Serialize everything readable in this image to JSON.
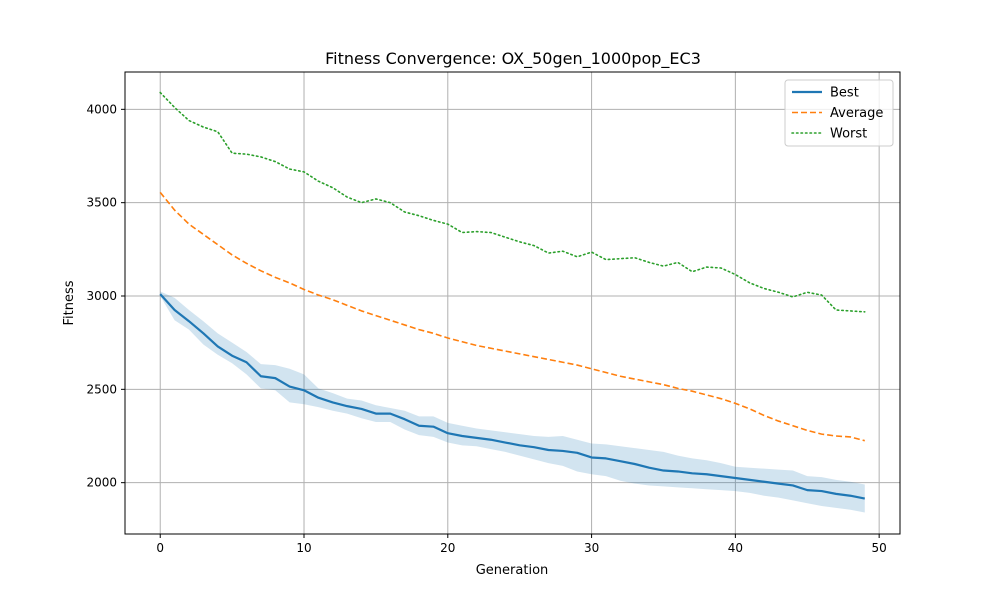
{
  "chart_data": {
    "type": "line",
    "title": "Fitness Convergence: OX_50gen_1000pop_EC3",
    "xlabel": "Generation",
    "ylabel": "Fitness",
    "xlim": [
      -2.45,
      51.45
    ],
    "ylim": [
      1725,
      4200
    ],
    "xticks": [
      0,
      10,
      20,
      30,
      40,
      50
    ],
    "yticks": [
      2000,
      2500,
      3000,
      3500,
      4000
    ],
    "grid": true,
    "legend_position": "top-right",
    "x": [
      0,
      1,
      2,
      3,
      4,
      5,
      6,
      7,
      8,
      9,
      10,
      11,
      12,
      13,
      14,
      15,
      16,
      17,
      18,
      19,
      20,
      21,
      22,
      23,
      24,
      25,
      26,
      27,
      28,
      29,
      30,
      31,
      32,
      33,
      34,
      35,
      36,
      37,
      38,
      39,
      40,
      41,
      42,
      43,
      44,
      45,
      46,
      47,
      48,
      49
    ],
    "series": [
      {
        "name": "Best",
        "color": "#1f77b4",
        "style": "solid",
        "values": [
          3010,
          2925,
          2865,
          2800,
          2730,
          2680,
          2645,
          2570,
          2560,
          2515,
          2495,
          2455,
          2430,
          2410,
          2395,
          2370,
          2370,
          2340,
          2305,
          2300,
          2265,
          2250,
          2240,
          2230,
          2215,
          2200,
          2190,
          2175,
          2170,
          2160,
          2135,
          2130,
          2115,
          2100,
          2080,
          2065,
          2060,
          2050,
          2045,
          2035,
          2025,
          2015,
          2005,
          1995,
          1985,
          1960,
          1955,
          1940,
          1930,
          1915
        ],
        "band_lower": [
          3000,
          2870,
          2820,
          2740,
          2685,
          2640,
          2580,
          2505,
          2495,
          2430,
          2420,
          2405,
          2385,
          2370,
          2345,
          2325,
          2325,
          2285,
          2255,
          2245,
          2215,
          2200,
          2195,
          2180,
          2165,
          2145,
          2125,
          2105,
          2090,
          2060,
          2045,
          2035,
          2010,
          1995,
          1985,
          1980,
          1975,
          1970,
          1965,
          1960,
          1955,
          1945,
          1930,
          1920,
          1905,
          1890,
          1875,
          1865,
          1855,
          1840
        ],
        "band_upper": [
          3025,
          2990,
          2925,
          2865,
          2800,
          2750,
          2700,
          2635,
          2630,
          2610,
          2580,
          2505,
          2480,
          2450,
          2440,
          2415,
          2400,
          2385,
          2355,
          2355,
          2320,
          2305,
          2290,
          2280,
          2270,
          2260,
          2250,
          2245,
          2250,
          2230,
          2210,
          2205,
          2195,
          2185,
          2175,
          2165,
          2145,
          2130,
          2120,
          2105,
          2085,
          2080,
          2075,
          2070,
          2065,
          2035,
          2030,
          2015,
          2005,
          1990
        ]
      },
      {
        "name": "Average",
        "color": "#ff7f0e",
        "style": "dashed",
        "values": [
          3555,
          3460,
          3385,
          3330,
          3275,
          3220,
          3175,
          3135,
          3100,
          3070,
          3035,
          3005,
          2980,
          2950,
          2920,
          2895,
          2870,
          2845,
          2820,
          2800,
          2775,
          2755,
          2735,
          2720,
          2705,
          2690,
          2675,
          2660,
          2645,
          2630,
          2610,
          2590,
          2570,
          2555,
          2540,
          2525,
          2505,
          2490,
          2470,
          2450,
          2425,
          2395,
          2360,
          2330,
          2305,
          2280,
          2260,
          2250,
          2245,
          2225
        ]
      },
      {
        "name": "Worst",
        "color": "#2ca02c",
        "style": "dotted",
        "values": [
          4090,
          4010,
          3940,
          3905,
          3880,
          3765,
          3760,
          3745,
          3720,
          3680,
          3665,
          3615,
          3580,
          3530,
          3500,
          3520,
          3500,
          3450,
          3430,
          3405,
          3385,
          3340,
          3345,
          3340,
          3315,
          3290,
          3270,
          3230,
          3240,
          3210,
          3235,
          3195,
          3200,
          3205,
          3180,
          3160,
          3180,
          3130,
          3155,
          3150,
          3115,
          3070,
          3040,
          3020,
          2995,
          3020,
          3005,
          2925,
          2920,
          2915
        ]
      }
    ]
  }
}
